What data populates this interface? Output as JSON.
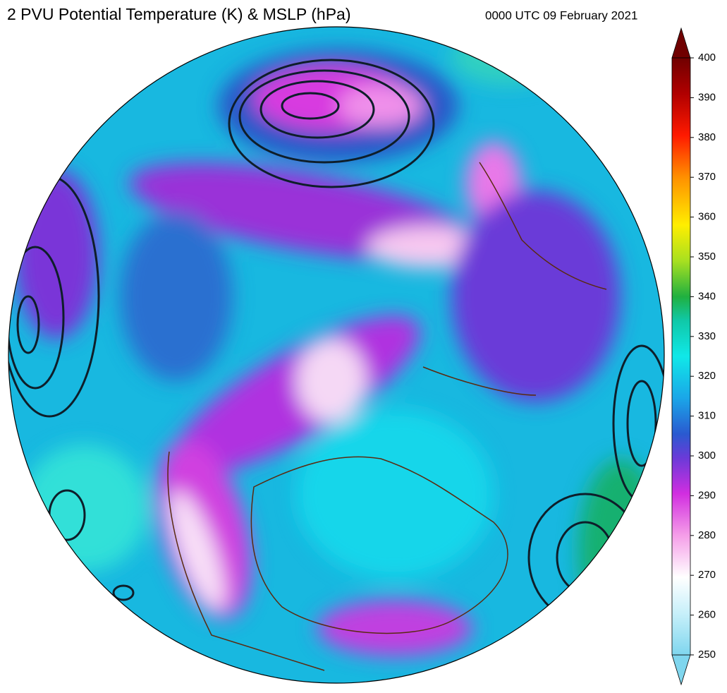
{
  "title": "2 PVU Potential Temperature (K) & MSLP (hPa)",
  "valid_time": "0000 UTC 09 February 2021",
  "colorbar": {
    "range": [
      250,
      400
    ],
    "ticks": [
      250,
      260,
      270,
      280,
      290,
      300,
      310,
      320,
      330,
      340,
      350,
      360,
      370,
      380,
      390,
      400
    ]
  }
}
